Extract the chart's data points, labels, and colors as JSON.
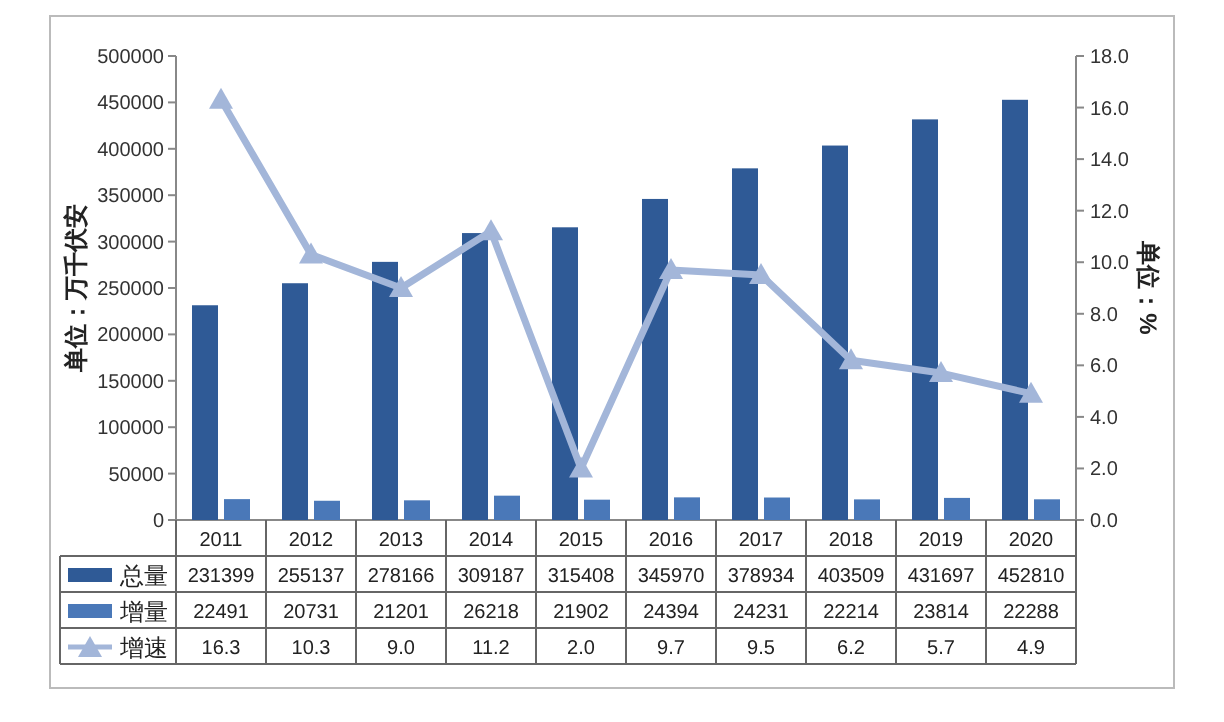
{
  "chart_data": {
    "type": "bar",
    "ylabel": "单位：万千伏安",
    "y2label": "单位：%",
    "categories": [
      "2011",
      "2012",
      "2013",
      "2014",
      "2015",
      "2016",
      "2017",
      "2018",
      "2019",
      "2020"
    ],
    "series": [
      {
        "name": "总量",
        "color": "#2f5a96",
        "values": [
          231399,
          255137,
          278166,
          309187,
          315408,
          345970,
          378934,
          403509,
          431697,
          452810
        ]
      },
      {
        "name": "增量",
        "color": "#4a78b8",
        "values": [
          22491,
          20731,
          21201,
          26218,
          21902,
          24394,
          24231,
          22214,
          23814,
          22288
        ]
      },
      {
        "name": "增速",
        "type": "line",
        "axis": "y2",
        "color": "#a3b6d9",
        "marker": "triangle",
        "line_style": "solid",
        "values": [
          16.3,
          10.3,
          9.0,
          11.2,
          2.0,
          9.7,
          9.5,
          6.2,
          5.7,
          4.9
        ],
        "value_labels": [
          "16.3",
          "10.3",
          "9.0",
          "11.2",
          "2.0",
          "9.7",
          "9.5",
          "6.2",
          "5.7",
          "4.9"
        ]
      }
    ],
    "ylim": [
      0,
      500000
    ],
    "yticks": [
      0,
      50000,
      100000,
      150000,
      200000,
      250000,
      300000,
      350000,
      400000,
      450000,
      500000
    ],
    "y2lim": [
      0,
      18
    ],
    "y2ticks": [
      {
        "value": 0,
        "label": "0.0"
      },
      {
        "value": 2,
        "label": "2.0"
      },
      {
        "value": 4,
        "label": "4.0"
      },
      {
        "value": 6,
        "label": "6.0"
      },
      {
        "value": 8,
        "label": "8.0"
      },
      {
        "value": 10,
        "label": "10.0"
      },
      {
        "value": 12,
        "label": "12.0"
      },
      {
        "value": 14,
        "label": "14.0"
      },
      {
        "value": 16,
        "label": "16.0"
      },
      {
        "value": 18,
        "label": "18.0"
      }
    ],
    "data_labels": true,
    "legend": "bottom"
  }
}
